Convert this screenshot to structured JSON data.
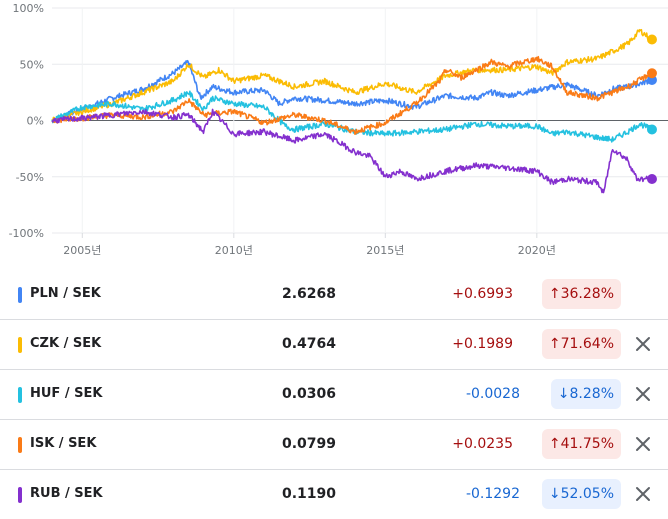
{
  "chart_data": {
    "type": "line",
    "title": "",
    "xlabel": "",
    "ylabel": "",
    "ylim": [
      -100,
      100
    ],
    "ytick_values": [
      100,
      50,
      0,
      -50,
      -100
    ],
    "ytick_labels": [
      "100%",
      "50%",
      "0%",
      "-50%",
      "-100%"
    ],
    "xlim": [
      2004.0,
      2023.9
    ],
    "xtick_values": [
      2005,
      2010,
      2015,
      2020
    ],
    "xtick_labels": [
      "2005년",
      "2010년",
      "2015년",
      "2020년"
    ],
    "grid": true,
    "legend": "none",
    "series": [
      {
        "color": "#4285f4",
        "x": [
          2004.0,
          2005.0,
          2006.0,
          2007.0,
          2007.5,
          2008.0,
          2008.5,
          2008.9,
          2009.3,
          2010.0,
          2011.0,
          2011.5,
          2012.0,
          2013.0,
          2014.0,
          2015.0,
          2016.0,
          2017.0,
          2018.0,
          2018.5,
          2019.0,
          2020.0,
          2021.0,
          2022.0,
          2022.5,
          2023.0,
          2023.8
        ],
        "y": [
          0,
          10,
          20,
          28,
          35,
          42,
          52,
          20,
          30,
          25,
          27,
          15,
          20,
          18,
          15,
          18,
          12,
          22,
          20,
          25,
          22,
          27,
          32,
          22,
          28,
          30,
          36
        ]
      },
      {
        "color": "#fbbc04",
        "x": [
          2004.0,
          2005.0,
          2006.0,
          2007.0,
          2008.0,
          2008.5,
          2009.0,
          2009.5,
          2010.0,
          2011.0,
          2012.0,
          2013.0,
          2014.0,
          2015.0,
          2016.0,
          2017.0,
          2018.0,
          2019.0,
          2020.0,
          2020.5,
          2021.0,
          2022.0,
          2023.0,
          2023.4,
          2023.8
        ],
        "y": [
          0,
          8,
          15,
          25,
          35,
          50,
          38,
          45,
          35,
          40,
          30,
          35,
          25,
          33,
          25,
          40,
          45,
          45,
          48,
          42,
          52,
          55,
          68,
          80,
          72
        ]
      },
      {
        "color": "#24c1e0",
        "x": [
          2004.0,
          2005.0,
          2006.0,
          2007.0,
          2008.0,
          2008.5,
          2009.0,
          2009.3,
          2010.0,
          2011.0,
          2011.7,
          2012.0,
          2013.0,
          2014.0,
          2015.0,
          2016.0,
          2017.0,
          2018.0,
          2019.0,
          2020.0,
          2020.5,
          2021.0,
          2022.0,
          2022.5,
          2023.0,
          2023.4,
          2023.8
        ],
        "y": [
          0,
          12,
          15,
          10,
          18,
          25,
          10,
          20,
          15,
          12,
          -5,
          -8,
          -3,
          -10,
          -12,
          -10,
          -8,
          -3,
          -5,
          -5,
          -12,
          -10,
          -15,
          -17,
          -10,
          -3,
          -8
        ]
      },
      {
        "color": "#fa7b17",
        "x": [
          2004.0,
          2005.0,
          2006.0,
          2007.0,
          2008.0,
          2008.5,
          2009.0,
          2010.0,
          2011.0,
          2012.0,
          2013.0,
          2014.0,
          2015.0,
          2016.0,
          2016.8,
          2017.0,
          2017.5,
          2018.0,
          2018.5,
          2019.0,
          2020.0,
          2020.5,
          2021.0,
          2022.0,
          2023.0,
          2023.8
        ],
        "y": [
          0,
          2,
          5,
          3,
          8,
          18,
          5,
          8,
          -2,
          5,
          0,
          -10,
          -2,
          15,
          35,
          45,
          38,
          45,
          52,
          48,
          55,
          48,
          25,
          20,
          30,
          42
        ]
      },
      {
        "color": "#8430ce",
        "x": [
          2004.0,
          2005.0,
          2006.0,
          2007.0,
          2008.0,
          2008.5,
          2009.0,
          2009.3,
          2010.0,
          2011.0,
          2012.0,
          2013.0,
          2014.0,
          2014.5,
          2015.0,
          2015.5,
          2016.0,
          2017.0,
          2018.0,
          2019.0,
          2020.0,
          2020.5,
          2021.0,
          2022.0,
          2022.2,
          2022.5,
          2023.0,
          2023.3,
          2023.8
        ],
        "y": [
          0,
          2,
          5,
          8,
          3,
          5,
          -10,
          8,
          -12,
          -10,
          -18,
          -12,
          -28,
          -32,
          -50,
          -45,
          -52,
          -45,
          -40,
          -42,
          -45,
          -55,
          -52,
          -55,
          -65,
          -25,
          -35,
          -52,
          -52
        ]
      }
    ]
  },
  "rows": [
    {
      "pair": "PLN / SEK",
      "price": "2.6268",
      "change": "+0.6993",
      "pct": "36.28%",
      "dir": "up",
      "color": "#4285f4",
      "removable": false
    },
    {
      "pair": "CZK / SEK",
      "price": "0.4764",
      "change": "+0.1989",
      "pct": "71.64%",
      "dir": "up",
      "color": "#fbbc04",
      "removable": true
    },
    {
      "pair": "HUF / SEK",
      "price": "0.0306",
      "change": "-0.0028",
      "pct": "8.28%",
      "dir": "down",
      "color": "#24c1e0",
      "removable": true
    },
    {
      "pair": "ISK / SEK",
      "price": "0.0799",
      "change": "+0.0235",
      "pct": "41.75%",
      "dir": "up",
      "color": "#fa7b17",
      "removable": true
    },
    {
      "pair": "RUB / SEK",
      "price": "0.1190",
      "change": "-0.1292",
      "pct": "52.05%",
      "dir": "down",
      "color": "#8430ce",
      "removable": true
    }
  ],
  "icons": {
    "remove": "close-icon",
    "up": "arrow-up-icon",
    "down": "arrow-down-icon"
  },
  "colors": {
    "up_text": "#a50e0e",
    "up_bg": "#fce8e6",
    "down_text": "#1967d2",
    "down_bg": "#e8f0fe"
  }
}
